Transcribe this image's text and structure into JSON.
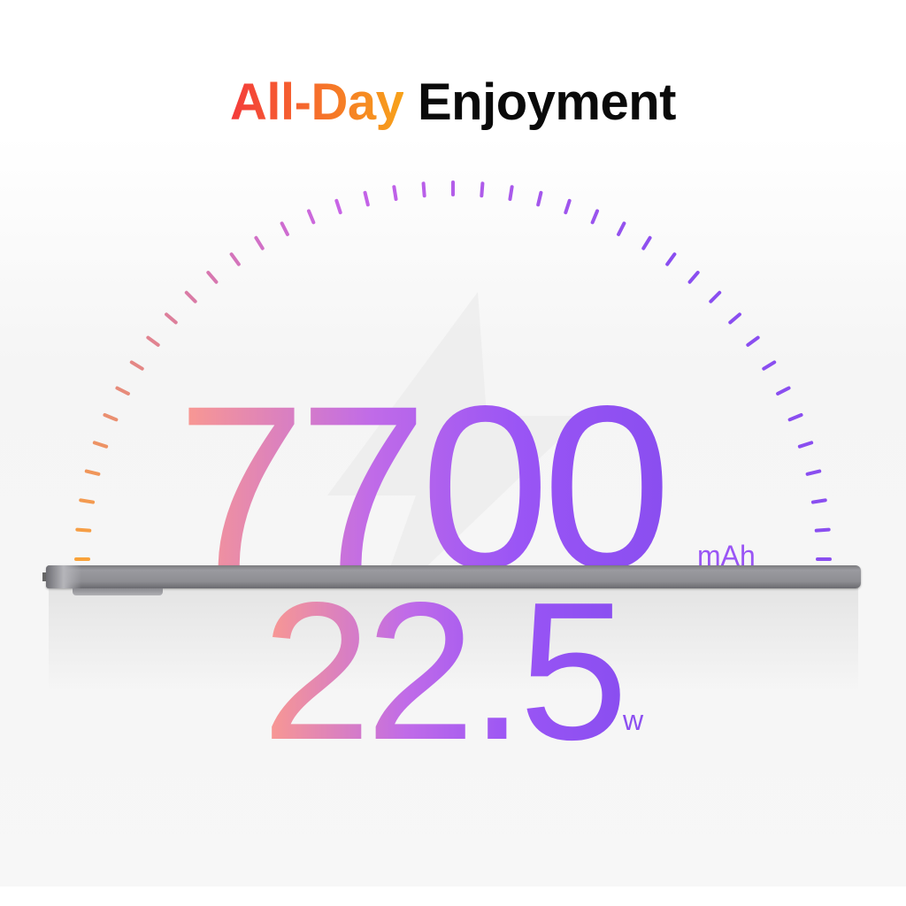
{
  "headline": {
    "accent": "All-Day",
    "rest": "Enjoyment"
  },
  "battery": {
    "value": "7700",
    "unit": "mAh"
  },
  "charging": {
    "value": "22.5",
    "unit": "w"
  },
  "colors": {
    "gauge_start": "#f9a23a",
    "gauge_end": "#8a4ef0",
    "headline_start": "#f43b3b",
    "headline_end": "#f7a21a"
  },
  "icons": [
    "lightning-bolt-icon"
  ]
}
